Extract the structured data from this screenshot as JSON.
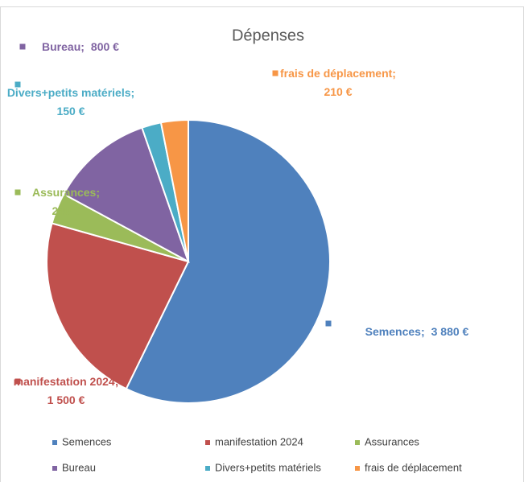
{
  "chart_data": {
    "type": "pie",
    "title": "Dépenses",
    "categories": [
      "Semences",
      "manifestation 2024",
      "Assurances",
      "Bureau",
      "Divers+petits matériels",
      "frais de déplacement"
    ],
    "values": [
      3880,
      1500,
      240,
      800,
      150,
      210
    ],
    "value_labels": [
      "3 880 €",
      "1 500 €",
      "240 €",
      "800 €",
      "150 €",
      "210 €"
    ],
    "label_separator": ";",
    "colors": [
      "#4f81bd",
      "#c0504d",
      "#9bbb59",
      "#8064a2",
      "#4bacc6",
      "#f79646"
    ],
    "legend": "bottom"
  }
}
